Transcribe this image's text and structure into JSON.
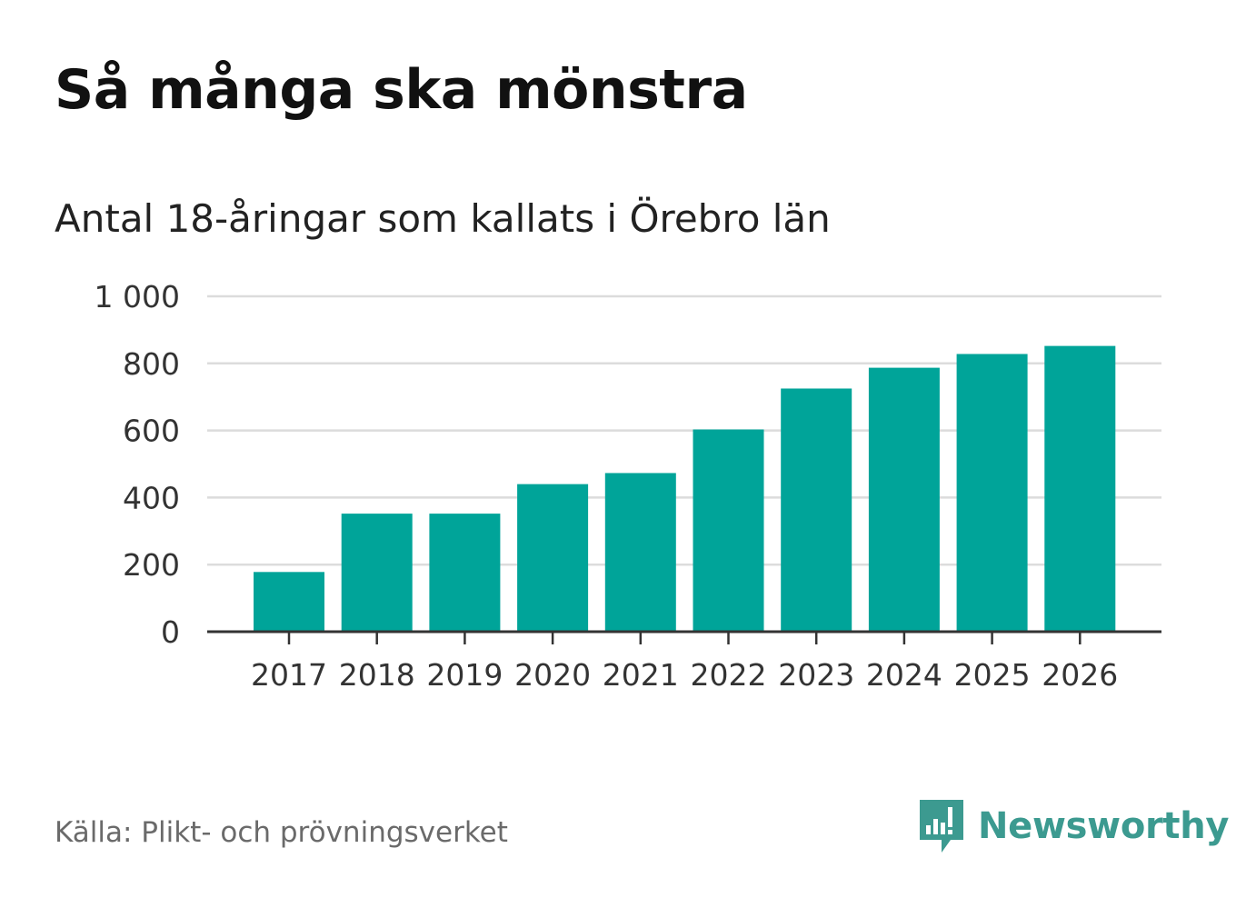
{
  "title": "Så många ska mönstra",
  "subtitle": "Antal 18-åringar som kallats i Örebro län",
  "source": "Källa: Plikt- och prövningsverket",
  "brand": {
    "name": "Newsworthy",
    "icon": "newsworthy-logo-icon"
  },
  "colors": {
    "bar": "#00a499",
    "grid": "#dcdcdc",
    "axis": "#333333",
    "brand": "#3c9a90",
    "source": "#6a6a6a"
  },
  "chart_data": {
    "type": "bar",
    "title": "Så många ska mönstra",
    "subtitle": "Antal 18-åringar som kallats i Örebro län",
    "xlabel": "",
    "ylabel": "",
    "categories": [
      "2017",
      "2018",
      "2019",
      "2020",
      "2021",
      "2022",
      "2023",
      "2024",
      "2025",
      "2026"
    ],
    "values": [
      178,
      352,
      352,
      440,
      473,
      603,
      725,
      787,
      828,
      852
    ],
    "ylim": [
      0,
      1000
    ],
    "yticks": [
      0,
      200,
      400,
      600,
      800,
      1000
    ],
    "ytick_labels": [
      "0",
      "200",
      "400",
      "600",
      "800",
      "1 000"
    ],
    "grid": true,
    "legend": "none"
  }
}
